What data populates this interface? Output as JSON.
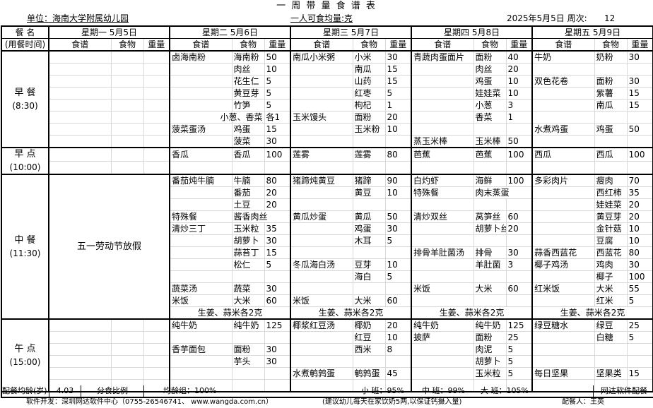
{
  "title": "一 周 带 量 食 谱 表",
  "unit": "单位：海南大学附属幼儿园",
  "per_person": "一人可食均量:克",
  "date_label": "2025年5月5日 周次:",
  "week_no": "12",
  "header": {
    "meal_name": "餐  名",
    "meal_time": "(用餐时间)",
    "recipe": "食谱",
    "food": "食物",
    "weight": "重量"
  },
  "meals": [
    {
      "key": "breakfast",
      "name": "早 餐",
      "time": "(8:30)",
      "rows": 8
    },
    {
      "key": "morning_snack",
      "name": "早 点",
      "time": "(10:00)",
      "rows": 2
    },
    {
      "key": "lunch",
      "name": "中 餐",
      "time": "(11:30)",
      "rows": 12
    },
    {
      "key": "afternoon_snack",
      "name": "午 点",
      "time": "(15:00)",
      "rows": 6
    }
  ],
  "days": [
    {
      "label": "星期一 5月5日",
      "meals": {
        "breakfast": [],
        "morning_snack": [],
        "lunch": "五一劳动节放假",
        "afternoon_snack": []
      }
    },
    {
      "label": "星期二 5月6日",
      "meals": {
        "breakfast": [
          [
            "卤海南粉",
            "海南粉",
            "50"
          ],
          [
            "",
            "肉丝",
            "10"
          ],
          [
            "",
            "花生仁",
            "5"
          ],
          [
            "",
            "黄豆芽",
            "5"
          ],
          [
            "",
            "竹笋",
            "5"
          ],
          [
            "",
            "小葱、香菜",
            "各1"
          ],
          [
            "菠菜蛋汤",
            "鸡蛋",
            "15"
          ],
          [
            "",
            "菠菜",
            "30"
          ]
        ],
        "morning_snack": [
          [
            "香瓜",
            "香瓜",
            "100"
          ]
        ],
        "lunch": [
          [
            "番茄炖牛腩",
            "牛腩",
            "80"
          ],
          [
            "",
            "番茄",
            "20"
          ],
          [
            "",
            "土豆",
            "20"
          ],
          [
            "特殊餐",
            "酱香肉丝"
          ],
          [
            "清炒三丁",
            "玉米粒",
            "35"
          ],
          [
            "",
            "胡萝卜",
            "30"
          ],
          [
            "",
            "蒜苔丁",
            "15"
          ],
          [
            "",
            "松仁",
            "5"
          ],
          [],
          [
            "蔬菜汤",
            "蔬菜",
            "30"
          ],
          [
            "米饭",
            "大米",
            "60"
          ],
          [
            "生姜、蒜米各2克"
          ]
        ],
        "afternoon_snack": [
          [
            "纯牛奶",
            "纯牛奶",
            "125"
          ],
          [],
          [
            "香芋面包",
            "面粉",
            "30"
          ],
          [
            "",
            "芋头",
            "30"
          ]
        ]
      }
    },
    {
      "label": "星期三 5月7日",
      "meals": {
        "breakfast": [
          [
            "南瓜小米粥",
            "小米",
            "30"
          ],
          [
            "",
            "南瓜",
            "15"
          ],
          [
            "",
            "山药",
            "15"
          ],
          [
            "",
            "红枣",
            "5"
          ],
          [
            "",
            "枸杞",
            "1"
          ],
          [
            "玉米馒头",
            "面粉",
            "20"
          ],
          [
            "",
            "玉米粉",
            "10"
          ]
        ],
        "morning_snack": [
          [
            "莲雾",
            "莲雾",
            "80"
          ]
        ],
        "lunch": [
          [
            "猪蹄炖黄豆",
            "猪蹄",
            "90"
          ],
          [
            "",
            "黄豆",
            "10"
          ],
          [],
          [
            "黄瓜炒蛋",
            "黄瓜",
            "50"
          ],
          [
            "",
            "鸡蛋",
            "30"
          ],
          [
            "",
            "木耳",
            "5"
          ],
          [],
          [
            "冬瓜海白汤",
            "豆芽",
            "10"
          ],
          [
            "",
            "海白",
            "5"
          ],
          [],
          [
            "米饭",
            "大米",
            "60"
          ],
          [
            "生姜、蒜米各2克"
          ]
        ],
        "afternoon_snack": [
          [
            "椰浆红豆汤",
            "椰奶",
            "20"
          ],
          [
            "",
            "红豆",
            "10"
          ],
          [
            "",
            "西米",
            "8"
          ],
          [],
          [
            "水煮鹌鹑蛋",
            "鹌鹑蛋",
            "45"
          ]
        ]
      }
    },
    {
      "label": "星期四 5月8日",
      "meals": {
        "breakfast": [
          [
            "青蔬肉蛋面片",
            "面粉",
            "40"
          ],
          [
            "",
            "肉丝",
            "20"
          ],
          [
            "",
            "鸡蛋",
            "10"
          ],
          [
            "",
            "娃娃菜",
            "10"
          ],
          [
            "",
            "小葱",
            "3"
          ],
          [
            "",
            "香菜",
            "1"
          ],
          [],
          [
            "蒸玉米棒",
            "玉米棒",
            "50"
          ]
        ],
        "morning_snack": [
          [
            "芭蕉",
            "芭蕉",
            "100"
          ]
        ],
        "lunch": [
          [
            "白灼虾",
            "海鲜",
            "100"
          ],
          [
            "特殊餐",
            "肉末蒸蛋"
          ],
          [],
          [
            "清炒双丝",
            "莴笋丝",
            "60"
          ],
          [
            "",
            "胡萝卜丝",
            "20"
          ],
          [],
          [
            "排骨羊肚菌汤",
            "排骨",
            "30"
          ],
          [
            "",
            "羊肚菌",
            "3"
          ],
          [],
          [
            "米饭",
            "大米",
            "60"
          ],
          [],
          [
            "生姜、蒜米各2克"
          ]
        ],
        "afternoon_snack": [
          [
            "纯牛奶",
            "纯牛奶",
            "125"
          ],
          [
            "披萨",
            "面粉",
            "25"
          ],
          [
            "",
            "肉泥",
            "5"
          ],
          [
            "",
            "胡萝卜",
            "5"
          ],
          [
            "",
            "玉米粒",
            "5"
          ]
        ]
      }
    },
    {
      "label": "星期五 5月9日",
      "meals": {
        "breakfast": [
          [
            "牛奶",
            "奶粉",
            "30"
          ],
          [],
          [
            "双色花卷",
            "面粉",
            "30"
          ],
          [
            "",
            "紫薯",
            "15"
          ],
          [
            "",
            "南瓜",
            "15"
          ],
          [],
          [
            "水煮鸡蛋",
            "鸡蛋",
            "50"
          ]
        ],
        "morning_snack": [
          [
            "西瓜",
            "西瓜",
            "100"
          ]
        ],
        "lunch": [
          [
            "多彩肉片",
            "瘦肉",
            "70"
          ],
          [
            "",
            "西红柿",
            "35"
          ],
          [
            "",
            "娃娃菜",
            "20"
          ],
          [
            "",
            "黄豆芽",
            "20"
          ],
          [
            "",
            "金针菇",
            "10"
          ],
          [
            "",
            "豆腐",
            "10"
          ],
          [
            "蒜香西蓝花",
            "西蓝花",
            "80"
          ],
          [
            "椰子鸡汤",
            "鸡肉",
            "30"
          ],
          [
            "",
            "椰子",
            "100"
          ],
          [
            "红米饭",
            "大米",
            "55"
          ],
          [
            "",
            "红米",
            "5"
          ],
          [
            "生姜、蒜米各2克"
          ]
        ],
        "afternoon_snack": [
          [
            "绿豆糖水",
            "绿豆",
            "25"
          ],
          [
            "",
            "白糖",
            "5"
          ],
          [],
          [],
          [
            "每日坚果",
            "坚果类",
            "15"
          ]
        ]
      }
    }
  ],
  "summary": {
    "avg_age_label": "配餐均龄(岁)",
    "avg_age": "4.03",
    "split_ratio": "分食比例",
    "avg_group": "均龄组：100%",
    "small_class": "小  班：95%",
    "middle_class": "中  班：99%",
    "large_class": "大  班：105%",
    "brand": "网达软件配餐"
  },
  "footer": {
    "developer": "软件开发：深圳网达软件中心（0755-26546741、 www.wangda.com.cn）",
    "advice": "(建议幼儿每天在家饮奶5两,以保证钙摄入量)",
    "planner": "配餐人：王英"
  }
}
